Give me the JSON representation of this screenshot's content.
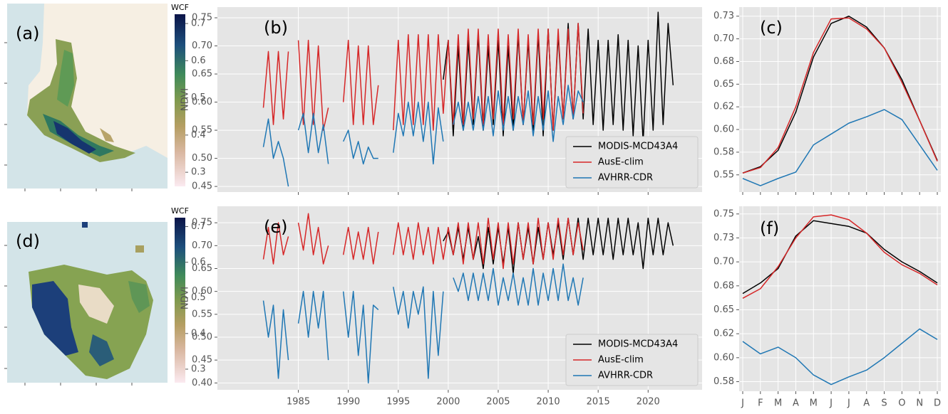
{
  "chart_data": [
    {
      "type": "map",
      "panel_label": "(a)",
      "colorbar": {
        "label": "WCF",
        "lim": [
          0.262,
          0.725
        ],
        "ticks": [
          0.3,
          0.4,
          0.5,
          0.6,
          0.7
        ]
      }
    },
    {
      "type": "line",
      "panel_label": "(b)",
      "ylabel": "NDVI",
      "legend": "lower right",
      "grid": true,
      "xtick_labels": false,
      "x": [
        1981.5,
        1982,
        1982.5,
        1983,
        1983.5,
        1984,
        1984.5,
        1985,
        1985.5,
        1986,
        1986.5,
        1987,
        1987.5,
        1988,
        1988.5,
        1989,
        1989.5,
        1990,
        1990.5,
        1991,
        1991.5,
        1992,
        1992.5,
        1993,
        1993.5,
        1994,
        1994.5,
        1995,
        1995.5,
        1996,
        1996.5,
        1997,
        1997.5,
        1998,
        1998.5,
        1999,
        1999.5,
        2000,
        2000.5,
        2001,
        2001.5,
        2002,
        2002.5,
        2003,
        2003.5,
        2004,
        2004.5,
        2005,
        2005.5,
        2006,
        2006.5,
        2007,
        2007.5,
        2008,
        2008.5,
        2009,
        2009.5,
        2010,
        2010.5,
        2011,
        2011.5,
        2012,
        2012.5,
        2013,
        2013.5,
        2014,
        2014.5,
        2015,
        2015.5,
        2016,
        2016.5,
        2017,
        2017.5,
        2018,
        2018.5,
        2019,
        2019.5,
        2020,
        2020.5,
        2021,
        2021.5,
        2022,
        2022.5
      ],
      "xlim": [
        1976.9,
        2025.4
      ],
      "xticks": [
        1985,
        1990,
        1995,
        2000,
        2005,
        2010,
        2015,
        2020
      ],
      "ylim": [
        0.44,
        0.769
      ],
      "yticks": [
        0.45,
        {
          "value": 0.5,
          "label": "0.50"
        },
        0.55,
        {
          "value": 0.6,
          "label": "0.60"
        },
        0.65,
        {
          "value": 0.7,
          "label": "0.70"
        },
        0.75
      ],
      "series": [
        {
          "name": "MODIS-MCD43A4",
          "color": "#000000",
          "values": [
            null,
            null,
            null,
            null,
            null,
            null,
            null,
            null,
            null,
            null,
            null,
            null,
            null,
            null,
            null,
            null,
            null,
            null,
            null,
            null,
            null,
            null,
            null,
            null,
            null,
            null,
            null,
            null,
            null,
            null,
            null,
            null,
            null,
            null,
            null,
            null,
            0.64,
            0.71,
            0.54,
            0.7,
            0.55,
            0.71,
            0.56,
            0.72,
            0.55,
            0.7,
            0.56,
            0.71,
            0.54,
            0.7,
            0.55,
            0.72,
            0.56,
            0.71,
            0.55,
            0.72,
            0.54,
            0.73,
            0.55,
            0.72,
            0.57,
            0.74,
            0.57,
            0.74,
            0.57,
            0.73,
            0.56,
            0.71,
            0.55,
            0.71,
            0.56,
            0.72,
            0.55,
            0.71,
            0.54,
            0.7,
            0.53,
            0.71,
            0.55,
            0.76,
            0.56,
            0.74,
            0.63
          ]
        },
        {
          "name": "AusE-clim",
          "color": "#d62728",
          "values": [
            0.59,
            0.69,
            0.56,
            0.69,
            0.57,
            0.69,
            null,
            0.71,
            0.56,
            0.71,
            0.56,
            0.7,
            0.55,
            0.59,
            null,
            null,
            0.6,
            0.71,
            0.56,
            0.7,
            0.56,
            0.7,
            0.56,
            0.63,
            null,
            null,
            0.55,
            0.71,
            0.56,
            0.72,
            0.56,
            0.72,
            0.56,
            0.72,
            0.55,
            0.72,
            0.58,
            0.71,
            0.56,
            0.72,
            0.56,
            0.73,
            0.57,
            0.73,
            0.56,
            0.72,
            0.57,
            0.73,
            0.56,
            0.72,
            0.57,
            0.73,
            0.56,
            0.72,
            0.56,
            0.73,
            0.57,
            0.73,
            0.55,
            0.73,
            0.57,
            0.73,
            0.57,
            0.74,
            0.58,
            null,
            null,
            null,
            null,
            null,
            null,
            null,
            null,
            null,
            null,
            null,
            null,
            null,
            null,
            null,
            null,
            null,
            null
          ]
        },
        {
          "name": "AVHRR-CDR",
          "color": "#1f77b4",
          "values": [
            0.52,
            0.57,
            0.5,
            0.53,
            0.5,
            0.45,
            null,
            0.55,
            0.58,
            0.51,
            0.58,
            0.51,
            0.56,
            0.49,
            null,
            null,
            0.53,
            0.55,
            0.5,
            0.53,
            0.49,
            0.52,
            0.5,
            0.5,
            null,
            null,
            0.51,
            0.58,
            0.54,
            0.6,
            0.54,
            0.6,
            0.53,
            0.6,
            0.49,
            0.59,
            0.53,
            null,
            0.56,
            0.6,
            0.55,
            0.6,
            0.55,
            0.61,
            0.55,
            0.61,
            0.54,
            0.62,
            0.55,
            0.61,
            0.55,
            0.61,
            0.56,
            0.62,
            0.54,
            0.61,
            0.55,
            0.62,
            0.53,
            0.61,
            0.56,
            0.63,
            0.57,
            0.62,
            0.6,
            null,
            null,
            null,
            null,
            null,
            null,
            null,
            null,
            null,
            null,
            null,
            null,
            null,
            null,
            null,
            null,
            null,
            null
          ]
        }
      ]
    },
    {
      "type": "line",
      "panel_label": "(c)",
      "grid": true,
      "ylim": [
        0.531,
        0.735
      ],
      "yticks": [
        0.55,
        {
          "value": 0.575,
          "label": "0.58"
        },
        {
          "value": 0.6,
          "label": "0.60"
        },
        {
          "value": 0.625,
          "label": "0.62"
        },
        0.65,
        {
          "value": 0.675,
          "label": "0.68"
        },
        {
          "value": 0.7,
          "label": "0.70"
        },
        {
          "value": 0.725,
          "label": "0.73"
        }
      ],
      "series": [
        {
          "name": "MODIS-MCD43A4",
          "color": "#000000",
          "values": [
            0.552,
            0.559,
            0.577,
            0.619,
            0.68,
            0.717,
            0.725,
            0.713,
            0.69,
            0.655,
            0.61,
            0.566
          ]
        },
        {
          "name": "AusE-clim",
          "color": "#d62728",
          "values": [
            0.552,
            0.558,
            0.58,
            0.625,
            0.685,
            0.722,
            0.723,
            0.711,
            0.69,
            0.652,
            0.61,
            0.565
          ]
        },
        {
          "name": "AVHRR-CDR",
          "color": "#1f77b4",
          "values": [
            0.546,
            0.538,
            0.546,
            0.553,
            0.583,
            0.595,
            0.607,
            0.614,
            0.622,
            0.611,
            0.583,
            0.555
          ]
        }
      ]
    },
    {
      "type": "map",
      "panel_label": "(d)",
      "colorbar": {
        "label": "WCF",
        "lim": [
          0.262,
          0.725
        ],
        "ticks": [
          0.3,
          0.4,
          0.5,
          0.6,
          0.7
        ]
      }
    },
    {
      "type": "line",
      "panel_label": "(e)",
      "ylabel": "NDVI",
      "legend": "lower right",
      "grid": true,
      "xtick_labels": true,
      "x": [
        1981.5,
        1982,
        1982.5,
        1983,
        1983.5,
        1984,
        1984.5,
        1985,
        1985.5,
        1986,
        1986.5,
        1987,
        1987.5,
        1988,
        1988.5,
        1989,
        1989.5,
        1990,
        1990.5,
        1991,
        1991.5,
        1992,
        1992.5,
        1993,
        1993.5,
        1994,
        1994.5,
        1995,
        1995.5,
        1996,
        1996.5,
        1997,
        1997.5,
        1998,
        1998.5,
        1999,
        1999.5,
        2000,
        2000.5,
        2001,
        2001.5,
        2002,
        2002.5,
        2003,
        2003.5,
        2004,
        2004.5,
        2005,
        2005.5,
        2006,
        2006.5,
        2007,
        2007.5,
        2008,
        2008.5,
        2009,
        2009.5,
        2010,
        2010.5,
        2011,
        2011.5,
        2012,
        2012.5,
        2013,
        2013.5,
        2014,
        2014.5,
        2015,
        2015.5,
        2016,
        2016.5,
        2017,
        2017.5,
        2018,
        2018.5,
        2019,
        2019.5,
        2020,
        2020.5,
        2021,
        2021.5,
        2022,
        2022.5
      ],
      "xlim": [
        1976.9,
        2025.4
      ],
      "xticks": [
        1985,
        1990,
        1995,
        2000,
        2005,
        2010,
        2015,
        2020
      ],
      "ylim": [
        0.385,
        0.786
      ],
      "yticks": [
        {
          "value": 0.4,
          "label": "0.40"
        },
        0.45,
        {
          "value": 0.5,
          "label": "0.50"
        },
        0.55,
        {
          "value": 0.6,
          "label": "0.60"
        },
        0.65,
        {
          "value": 0.7,
          "label": "0.70"
        },
        0.75
      ],
      "series": [
        {
          "name": "MODIS-MCD43A4",
          "color": "#000000",
          "values": [
            null,
            null,
            null,
            null,
            null,
            null,
            null,
            null,
            null,
            null,
            null,
            null,
            null,
            null,
            null,
            null,
            null,
            null,
            null,
            null,
            null,
            null,
            null,
            null,
            null,
            null,
            null,
            null,
            null,
            null,
            null,
            null,
            null,
            null,
            null,
            null,
            0.71,
            0.73,
            0.68,
            0.74,
            0.67,
            0.74,
            0.67,
            0.72,
            0.65,
            0.74,
            0.66,
            0.74,
            0.66,
            0.74,
            0.64,
            0.75,
            0.67,
            0.74,
            0.66,
            0.74,
            0.67,
            0.75,
            0.68,
            0.75,
            0.67,
            0.76,
            0.68,
            0.76,
            0.67,
            0.76,
            0.68,
            0.76,
            0.68,
            0.76,
            0.67,
            0.76,
            0.68,
            0.76,
            0.68,
            0.75,
            0.65,
            0.76,
            0.68,
            0.76,
            0.68,
            0.75,
            0.7
          ]
        },
        {
          "name": "AusE-clim",
          "color": "#d62728",
          "values": [
            0.67,
            0.74,
            0.66,
            0.75,
            0.68,
            0.72,
            null,
            0.75,
            0.69,
            0.77,
            0.68,
            0.74,
            0.66,
            0.7,
            null,
            null,
            0.68,
            0.74,
            0.67,
            0.73,
            0.67,
            0.74,
            0.66,
            0.73,
            null,
            null,
            0.68,
            0.75,
            0.68,
            0.74,
            0.67,
            0.75,
            0.68,
            0.74,
            0.66,
            0.74,
            0.67,
            0.74,
            0.68,
            0.75,
            0.66,
            0.75,
            0.67,
            0.75,
            0.66,
            0.76,
            0.67,
            0.75,
            0.65,
            0.75,
            0.66,
            0.75,
            0.67,
            0.75,
            0.66,
            0.76,
            0.67,
            0.75,
            0.67,
            0.76,
            0.68,
            0.76,
            0.68,
            0.75,
            0.69,
            null,
            null,
            null,
            null,
            null,
            null,
            null,
            null,
            null,
            null,
            null,
            null,
            null,
            null,
            null,
            null,
            null,
            null
          ]
        },
        {
          "name": "AVHRR-CDR",
          "color": "#1f77b4",
          "values": [
            0.58,
            0.5,
            0.57,
            0.41,
            0.56,
            0.45,
            null,
            0.53,
            0.6,
            0.5,
            0.6,
            0.52,
            0.6,
            0.45,
            null,
            null,
            0.6,
            0.5,
            0.6,
            0.46,
            0.57,
            0.4,
            0.57,
            0.56,
            null,
            null,
            0.61,
            0.55,
            0.6,
            0.52,
            0.6,
            0.55,
            0.61,
            0.41,
            0.6,
            0.46,
            0.6,
            null,
            0.63,
            0.6,
            0.64,
            0.58,
            0.64,
            0.58,
            0.64,
            0.58,
            0.65,
            0.57,
            0.63,
            0.58,
            0.64,
            0.57,
            0.63,
            0.57,
            0.65,
            0.57,
            0.64,
            0.58,
            0.65,
            0.58,
            0.66,
            0.58,
            0.63,
            0.57,
            0.63,
            null,
            null,
            null,
            null,
            null,
            null,
            null,
            null,
            null,
            null,
            null,
            null,
            null,
            null,
            null,
            null,
            null,
            null
          ]
        }
      ]
    },
    {
      "type": "line",
      "panel_label": "(f)",
      "grid": true,
      "categories": [
        "J",
        "F",
        "M",
        "A",
        "M",
        "J",
        "J",
        "A",
        "S",
        "O",
        "N",
        "D"
      ],
      "ylim": [
        0.565,
        0.758
      ],
      "yticks": [
        {
          "value": 0.575,
          "label": "0.58"
        },
        {
          "value": 0.6,
          "label": "0.60"
        },
        {
          "value": 0.625,
          "label": "0.62"
        },
        0.65,
        {
          "value": 0.675,
          "label": "0.68"
        },
        {
          "value": 0.7,
          "label": "0.70"
        },
        {
          "value": 0.725,
          "label": "0.73"
        },
        0.75
      ],
      "series": [
        {
          "name": "MODIS-MCD43A4",
          "color": "#000000",
          "values": [
            0.667,
            0.678,
            0.693,
            0.727,
            0.743,
            0.74,
            0.737,
            0.73,
            0.713,
            0.7,
            0.69,
            0.678
          ]
        },
        {
          "name": "AusE-clim",
          "color": "#d62728",
          "values": [
            0.662,
            0.672,
            0.695,
            0.725,
            0.747,
            0.749,
            0.744,
            0.73,
            0.71,
            0.697,
            0.688,
            0.676
          ]
        },
        {
          "name": "AVHRR-CDR",
          "color": "#1f77b4",
          "values": [
            0.617,
            0.604,
            0.611,
            0.6,
            0.582,
            0.572,
            0.58,
            0.587,
            0.6,
            0.615,
            0.63,
            0.619
          ]
        }
      ]
    }
  ]
}
